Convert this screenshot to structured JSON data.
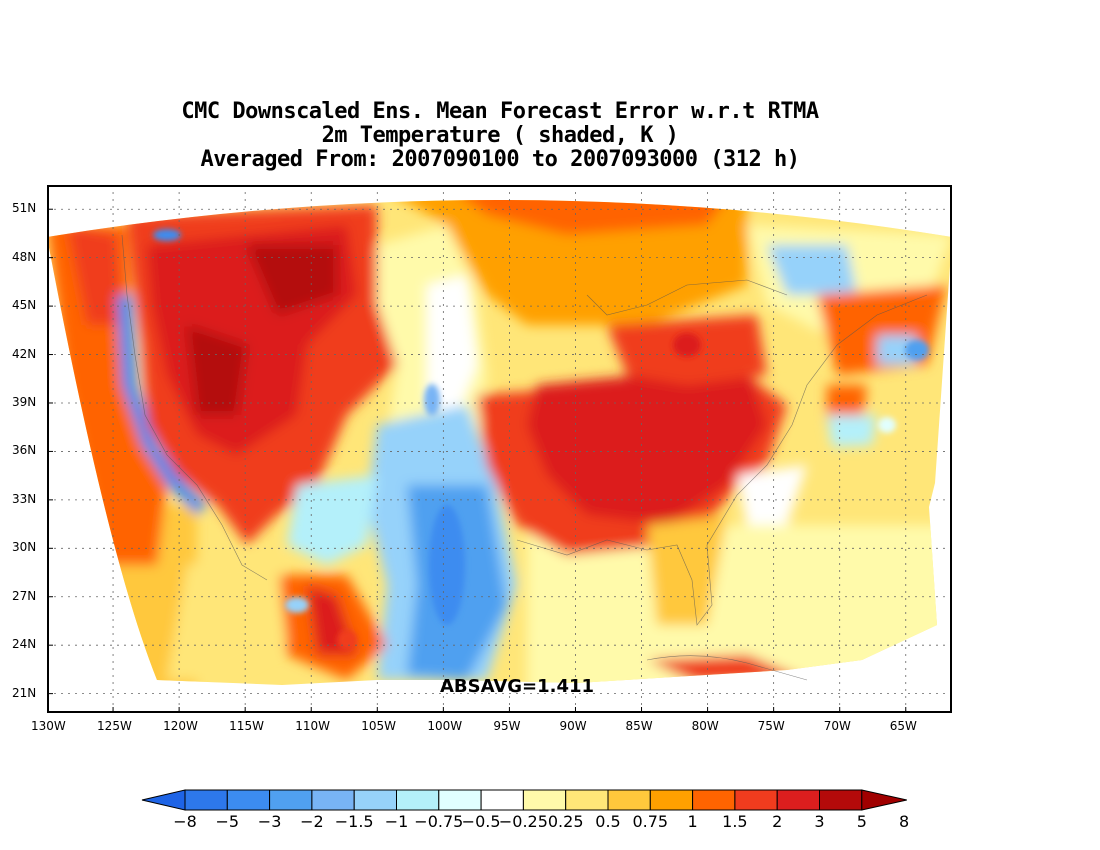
{
  "title": {
    "line1": "CMC Downscaled Ens. Mean Forecast Error w.r.t RTMA",
    "line2": "2m Temperature ( shaded, K )",
    "line3": "Averaged From: 2007090100 to 2007093000 (312 h)"
  },
  "map": {
    "lon_ticks": [
      "130W",
      "125W",
      "120W",
      "115W",
      "110W",
      "105W",
      "100W",
      "95W",
      "90W",
      "85W",
      "80W",
      "75W",
      "70W",
      "65W"
    ],
    "lat_ticks": [
      "51N",
      "48N",
      "45N",
      "42N",
      "39N",
      "36N",
      "33N",
      "30N",
      "27N",
      "24N",
      "21N"
    ],
    "lon_range": [
      -130,
      -61.5
    ],
    "lat_range": [
      19.8,
      52.5
    ],
    "annotation": "ABSAVG=1.411"
  },
  "colorbar": {
    "labels": [
      "−8",
      "−5",
      "−3",
      "−2",
      "−1.5",
      "−1",
      "−0.75",
      "−0.5",
      "−0.25",
      "0.25",
      "0.5",
      "0.75",
      "1",
      "1.5",
      "2",
      "3",
      "5",
      "8"
    ],
    "colors": [
      "#1e64e6",
      "#2d78eb",
      "#3c8cf0",
      "#50a0f0",
      "#78b4f5",
      "#96d2fa",
      "#b4f0fa",
      "#e1ffff",
      "#ffffff",
      "#fffaaa",
      "#ffe678",
      "#ffc83c",
      "#ffa000",
      "#ff6400",
      "#f03c1e",
      "#dc1e1e",
      "#b40a0a",
      "#a00000"
    ],
    "low_arrow_color": "#1e64e6",
    "high_arrow_color": "#a00000"
  },
  "colors": {
    "deep_blue": "#1e64e6",
    "light_blue": "#96d2fa",
    "pale_yellow": "#fffaaa",
    "orange": "#ffa000",
    "red_orange": "#f03c1e",
    "red": "#dc1e1e"
  }
}
